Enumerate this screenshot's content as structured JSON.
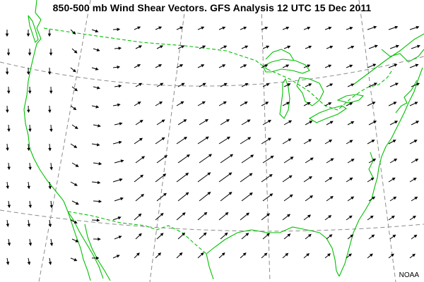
{
  "map": {
    "title": "850-500 mb Wind Shear Vectors. GFS Analysis 12 UTC 15 Dec 2011",
    "credit": "NOAA",
    "colors": {
      "background": "#ffffff",
      "coastline": "#00c000",
      "borders": "#00c000",
      "graticule": "#8c8c8c",
      "vectors": "#000000"
    },
    "vector_field": {
      "description_key": "850-500 mb wind shear vectors",
      "rows": 13,
      "cols": 20
    }
  }
}
